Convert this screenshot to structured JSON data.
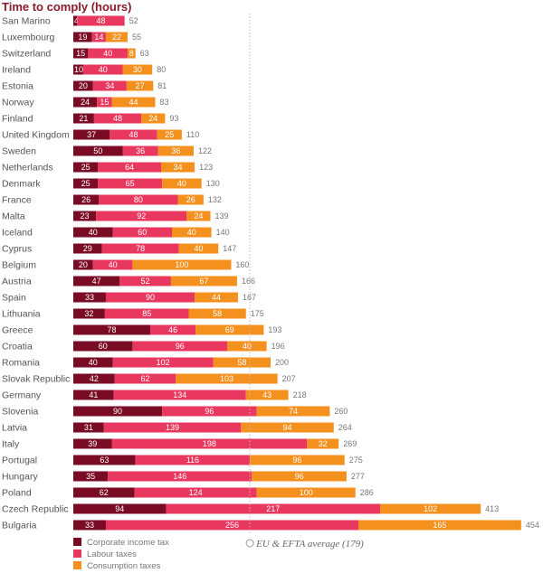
{
  "chart_data": {
    "type": "bar",
    "orientation": "horizontal",
    "stacked": true,
    "title": "Time to comply (hours)",
    "categories": [
      "San Marino",
      "Luxembourg",
      "Switzerland",
      "Ireland",
      "Estonia",
      "Norway",
      "Finland",
      "United Kingdom",
      "Sweden",
      "Netherlands",
      "Denmark",
      "France",
      "Malta",
      "Iceland",
      "Cyprus",
      "Belgium",
      "Austria",
      "Spain",
      "Lithuania",
      "Greece",
      "Croatia",
      "Romania",
      "Slovak Republic",
      "Germany",
      "Slovenia",
      "Latvia",
      "Italy",
      "Portugal",
      "Hungary",
      "Poland",
      "Czech Republic",
      "Bulgaria"
    ],
    "series": [
      {
        "name": "Corporate income tax",
        "color": "#7a0b25",
        "values": [
          4,
          19,
          15,
          10,
          20,
          24,
          21,
          37,
          50,
          25,
          25,
          26,
          23,
          40,
          29,
          20,
          47,
          33,
          32,
          78,
          60,
          40,
          42,
          41,
          90,
          31,
          39,
          63,
          35,
          62,
          94,
          33
        ]
      },
      {
        "name": "Labour taxes",
        "color": "#e8385f",
        "values": [
          48,
          14,
          40,
          40,
          34,
          15,
          48,
          48,
          36,
          64,
          65,
          80,
          92,
          60,
          78,
          40,
          52,
          90,
          85,
          46,
          96,
          102,
          62,
          134,
          96,
          139,
          198,
          116,
          146,
          124,
          217,
          256
        ]
      },
      {
        "name": "Consumption taxes",
        "color": "#f4901e",
        "values": [
          null,
          22,
          8,
          30,
          27,
          44,
          24,
          25,
          36,
          34,
          40,
          26,
          24,
          40,
          40,
          100,
          67,
          44,
          58,
          69,
          40,
          58,
          103,
          43,
          74,
          94,
          32,
          96,
          96,
          100,
          102,
          165
        ]
      }
    ],
    "totals": [
      "52",
      "55",
      "63",
      "80",
      "81",
      "83",
      "93",
      "110",
      "122",
      "123",
      "130",
      "132",
      "139",
      "140",
      "147",
      "160",
      "166",
      "167",
      "175",
      "193",
      "196",
      "200",
      "207",
      "218",
      "260",
      "264",
      "269",
      "275",
      "277",
      "286",
      "413",
      "454"
    ],
    "reference_line": {
      "value": 179,
      "label": "EU & EFTA average (179)"
    },
    "legend_position": "bottom-left",
    "grid": false
  }
}
